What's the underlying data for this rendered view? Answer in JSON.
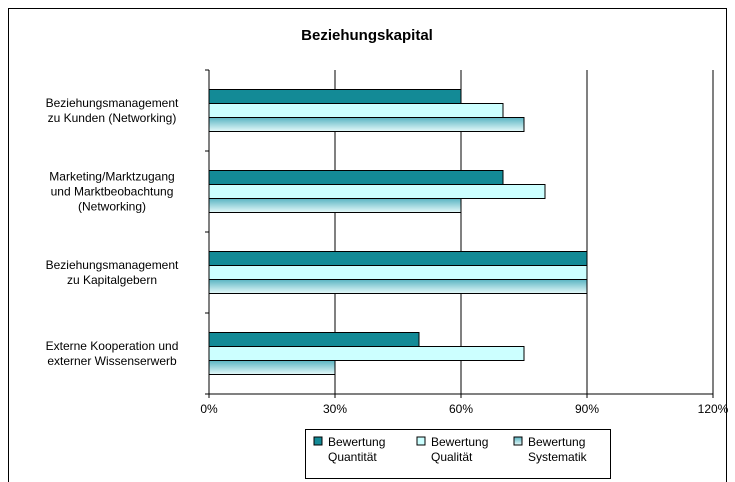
{
  "chart_data": {
    "type": "bar",
    "orientation": "horizontal",
    "title": "Beziehungskapital",
    "categories": [
      "Beziehungsmanagement\nzu Kunden (Networking)",
      "Marketing/Marktzugang\nund Marktbeobachtung\n(Networking)",
      "Beziehungsmanagement\nzu Kapitalgebern",
      "Externe Kooperation und\nexterner Wissenserwerb"
    ],
    "series": [
      {
        "name": "Bewertung\nQuantität",
        "color": "#138a96",
        "values": [
          60,
          70,
          90,
          50
        ]
      },
      {
        "name": "Bewertung\nQualität",
        "color": "#ccffff",
        "values": [
          70,
          80,
          90,
          75
        ]
      },
      {
        "name": "Bewertung\nSystematik",
        "color": "#5ab4c2",
        "values": [
          75,
          60,
          90,
          30
        ]
      }
    ],
    "xlim": [
      0,
      120
    ],
    "xticks": [
      {
        "value": 0,
        "label": "0%"
      },
      {
        "value": 30,
        "label": "30%"
      },
      {
        "value": 60,
        "label": "60%"
      },
      {
        "value": 90,
        "label": "90%"
      },
      {
        "value": 120,
        "label": "120%"
      }
    ],
    "grid": true,
    "legend": "bottom"
  }
}
